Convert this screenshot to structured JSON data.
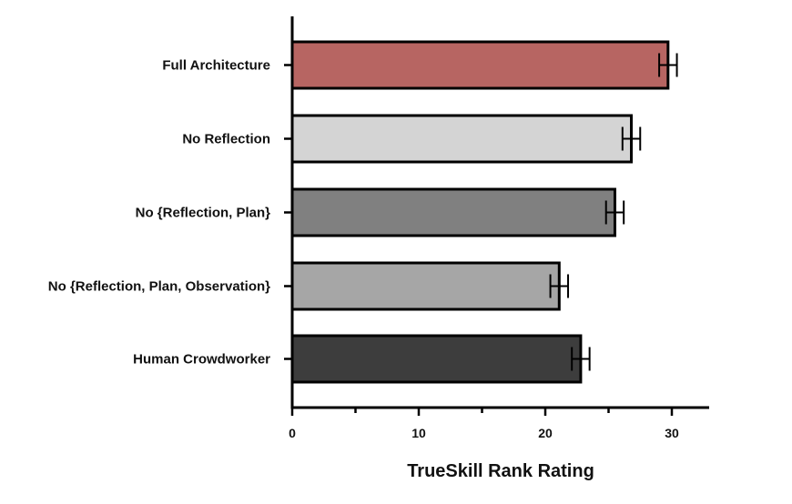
{
  "chart_data": {
    "type": "bar",
    "orientation": "horizontal",
    "categories": [
      "Full Architecture",
      "No Reflection",
      "No {Reflection, Plan}",
      "No {Reflection, Plan, Observation}",
      "Human Crowdworker"
    ],
    "values": [
      29.7,
      26.8,
      25.5,
      21.1,
      22.8
    ],
    "error": [
      0.7,
      0.7,
      0.7,
      0.7,
      0.7
    ],
    "colors": [
      "#b76562",
      "#d4d4d4",
      "#808080",
      "#a6a6a6",
      "#3d3d3d"
    ],
    "xlabel": "TrueSkill Rank Rating",
    "xlim": [
      0,
      33
    ],
    "major_ticks": [
      0,
      10,
      20,
      30
    ],
    "minor_ticks": [
      5,
      15,
      25
    ],
    "grid": false
  }
}
